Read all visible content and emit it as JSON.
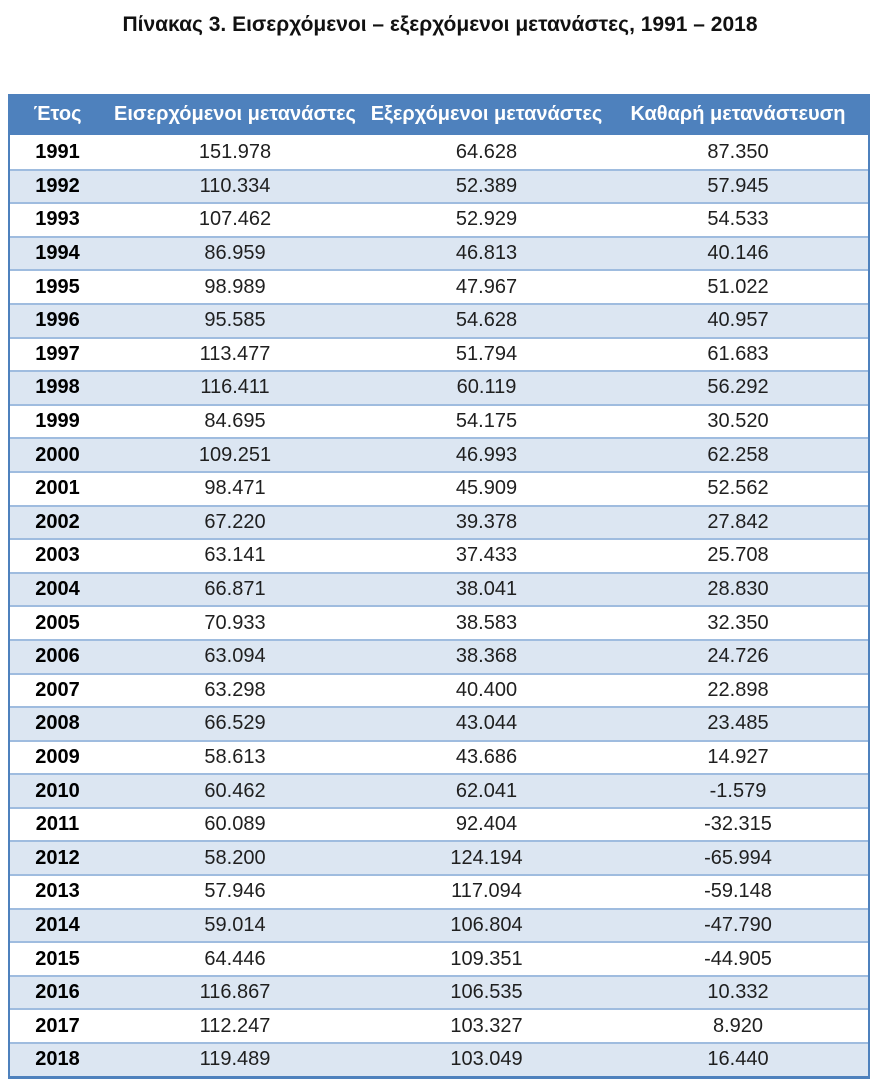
{
  "page": {
    "title": "Πίνακας 3. Εισερχόμενοι – εξερχόμενοι μετανάστες, 1991 – 2018"
  },
  "table": {
    "headers": [
      "Έτος",
      "Εισερχόμενοι μετανάστες",
      "Εξερχόμενοι μετανάστες",
      "Καθαρή μετανάστευση"
    ],
    "rows": [
      {
        "year": "1991",
        "incoming": "151.978",
        "outgoing": "64.628",
        "net": "87.350"
      },
      {
        "year": "1992",
        "incoming": "110.334",
        "outgoing": "52.389",
        "net": "57.945"
      },
      {
        "year": "1993",
        "incoming": "107.462",
        "outgoing": "52.929",
        "net": "54.533"
      },
      {
        "year": "1994",
        "incoming": "86.959",
        "outgoing": "46.813",
        "net": "40.146"
      },
      {
        "year": "1995",
        "incoming": "98.989",
        "outgoing": "47.967",
        "net": "51.022"
      },
      {
        "year": "1996",
        "incoming": "95.585",
        "outgoing": "54.628",
        "net": "40.957"
      },
      {
        "year": "1997",
        "incoming": "113.477",
        "outgoing": "51.794",
        "net": "61.683"
      },
      {
        "year": "1998",
        "incoming": "116.411",
        "outgoing": "60.119",
        "net": "56.292"
      },
      {
        "year": "1999",
        "incoming": "84.695",
        "outgoing": "54.175",
        "net": "30.520"
      },
      {
        "year": "2000",
        "incoming": "109.251",
        "outgoing": "46.993",
        "net": "62.258"
      },
      {
        "year": "2001",
        "incoming": "98.471",
        "outgoing": "45.909",
        "net": "52.562"
      },
      {
        "year": "2002",
        "incoming": "67.220",
        "outgoing": "39.378",
        "net": "27.842"
      },
      {
        "year": "2003",
        "incoming": "63.141",
        "outgoing": "37.433",
        "net": "25.708"
      },
      {
        "year": "2004",
        "incoming": "66.871",
        "outgoing": "38.041",
        "net": "28.830"
      },
      {
        "year": "2005",
        "incoming": "70.933",
        "outgoing": "38.583",
        "net": "32.350"
      },
      {
        "year": "2006",
        "incoming": "63.094",
        "outgoing": "38.368",
        "net": "24.726"
      },
      {
        "year": "2007",
        "incoming": "63.298",
        "outgoing": "40.400",
        "net": "22.898"
      },
      {
        "year": "2008",
        "incoming": "66.529",
        "outgoing": "43.044",
        "net": "23.485"
      },
      {
        "year": "2009",
        "incoming": "58.613",
        "outgoing": "43.686",
        "net": "14.927"
      },
      {
        "year": "2010",
        "incoming": "60.462",
        "outgoing": "62.041",
        "net": "-1.579"
      },
      {
        "year": "2011",
        "incoming": "60.089",
        "outgoing": "92.404",
        "net": "-32.315"
      },
      {
        "year": "2012",
        "incoming": "58.200",
        "outgoing": "124.194",
        "net": "-65.994"
      },
      {
        "year": "2013",
        "incoming": "57.946",
        "outgoing": "117.094",
        "net": "-59.148"
      },
      {
        "year": "2014",
        "incoming": "59.014",
        "outgoing": "106.804",
        "net": "-47.790"
      },
      {
        "year": "2015",
        "incoming": "64.446",
        "outgoing": "109.351",
        "net": "-44.905"
      },
      {
        "year": "2016",
        "incoming": "116.867",
        "outgoing": "106.535",
        "net": "10.332"
      },
      {
        "year": "2017",
        "incoming": "112.247",
        "outgoing": "103.327",
        "net": "8.920"
      },
      {
        "year": "2018",
        "incoming": "119.489",
        "outgoing": "103.049",
        "net": "16.440"
      }
    ],
    "colors": {
      "header_bg": "#4E81BD",
      "header_text": "#FFFFFF",
      "stripe": "#DCE6F2",
      "row_line": "#9FBCDF",
      "border": "#4E81BD"
    }
  }
}
